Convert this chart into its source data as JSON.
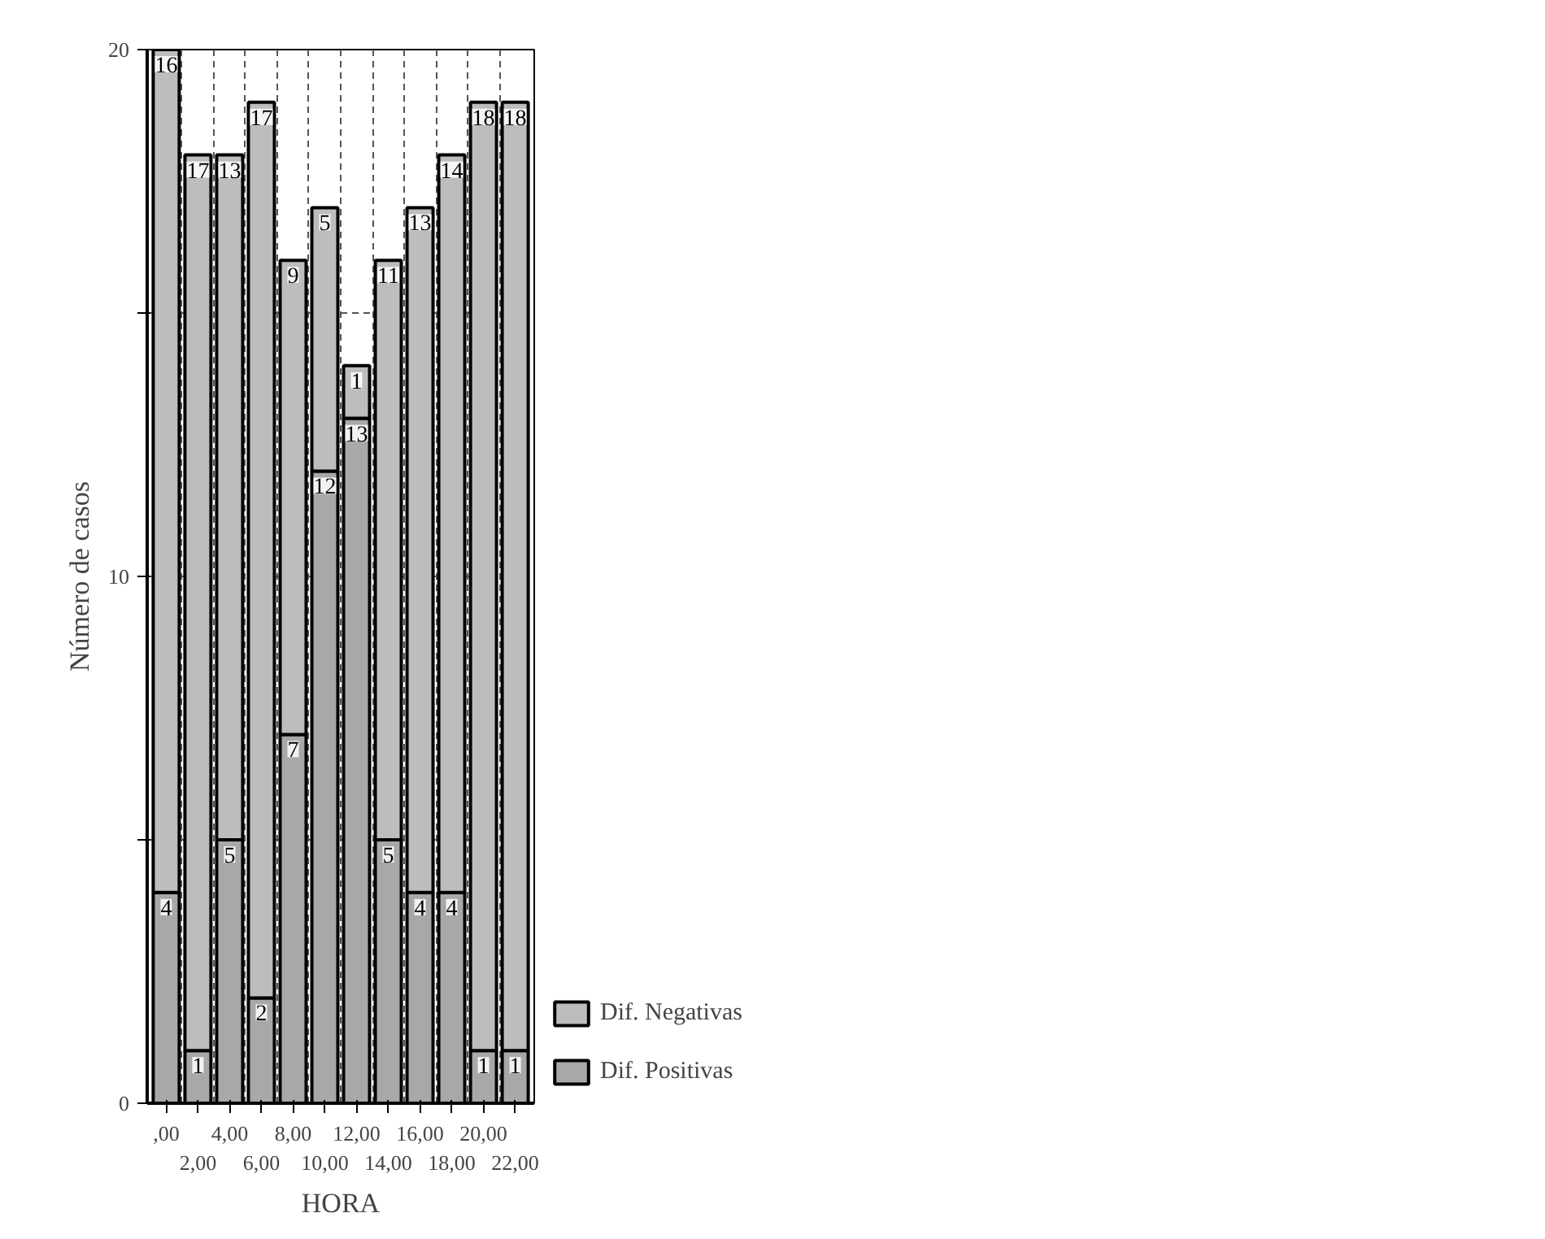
{
  "chart_data": {
    "type": "bar",
    "stacked": true,
    "xlabel": "HORA",
    "ylabel": "Número de casos",
    "categories": [
      ",00",
      "2,00",
      "4,00",
      "6,00",
      "8,00",
      "10,00",
      "12,00",
      "14,00",
      "16,00",
      "18,00",
      "20,00",
      "22,00"
    ],
    "series": [
      {
        "name": "Dif. Positivas",
        "color": "#a8a8a8",
        "values": [
          4,
          1,
          5,
          2,
          7,
          12,
          13,
          5,
          4,
          4,
          1,
          1
        ]
      },
      {
        "name": "Dif. Negativas",
        "color": "#bdbdbd",
        "values": [
          16,
          17,
          13,
          17,
          9,
          5,
          1,
          11,
          13,
          14,
          18,
          18
        ]
      }
    ],
    "ylim": [
      0,
      20
    ],
    "yticks": [
      0,
      {
        "value": 5,
        "label": null
      },
      10,
      {
        "value": 15,
        "label": null
      },
      20
    ],
    "grid": true,
    "legend": "right",
    "data_labels": true
  }
}
